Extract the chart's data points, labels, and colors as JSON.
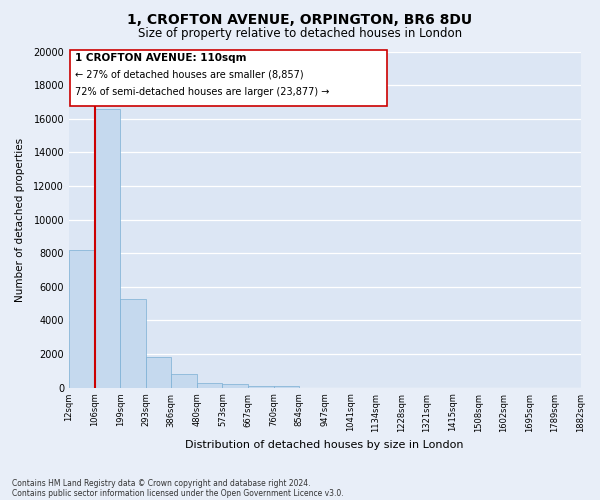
{
  "title": "1, CROFTON AVENUE, ORPINGTON, BR6 8DU",
  "subtitle": "Size of property relative to detached houses in London",
  "xlabel": "Distribution of detached houses by size in London",
  "ylabel": "Number of detached properties",
  "bar_values": [
    8200,
    16600,
    5300,
    1850,
    800,
    300,
    220,
    120,
    100,
    0,
    0,
    0,
    0,
    0,
    0,
    0,
    0,
    0,
    0,
    0
  ],
  "bar_labels": [
    "12sqm",
    "106sqm",
    "199sqm",
    "293sqm",
    "386sqm",
    "480sqm",
    "573sqm",
    "667sqm",
    "760sqm",
    "854sqm",
    "947sqm",
    "1041sqm",
    "1134sqm",
    "1228sqm",
    "1321sqm",
    "1415sqm",
    "1508sqm",
    "1602sqm",
    "1695sqm",
    "1789sqm",
    "1882sqm"
  ],
  "bar_color": "#c5d9ee",
  "bar_edge_color": "#7bafd4",
  "vline_x": 1,
  "vline_color": "#cc0000",
  "box_text_line1": "1 CROFTON AVENUE: 110sqm",
  "box_text_line2": "← 27% of detached houses are smaller (8,857)",
  "box_text_line3": "72% of semi-detached houses are larger (23,877) →",
  "ylim": [
    0,
    20000
  ],
  "yticks": [
    0,
    2000,
    4000,
    6000,
    8000,
    10000,
    12000,
    14000,
    16000,
    18000,
    20000
  ],
  "footnote1": "Contains HM Land Registry data © Crown copyright and database right 2024.",
  "footnote2": "Contains public sector information licensed under the Open Government Licence v3.0.",
  "bg_color": "#e8eef8",
  "plot_bg_color": "#dce6f4"
}
